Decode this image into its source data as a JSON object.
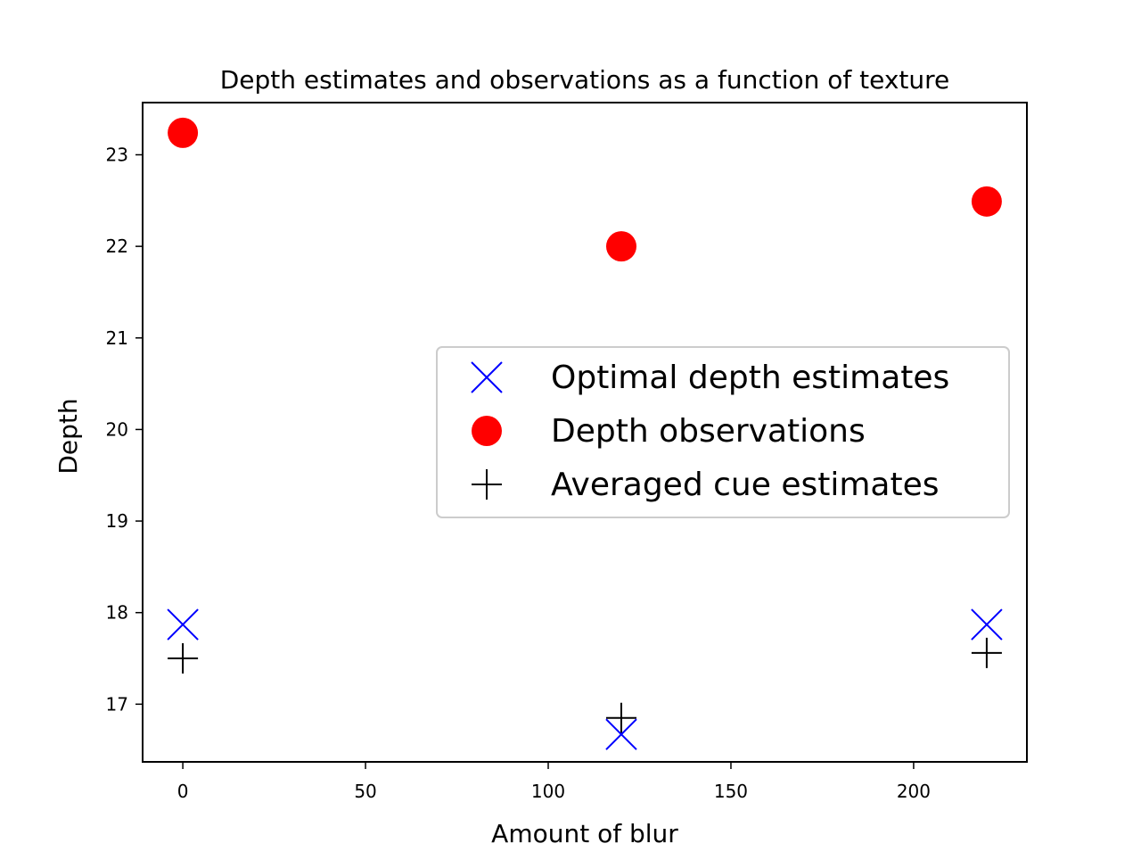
{
  "chart_data": {
    "type": "scatter",
    "title": "Depth estimates and observations as a function of texture",
    "xlabel": "Amount of blur",
    "ylabel": "Depth",
    "xlim": [
      -11,
      231
    ],
    "ylim": [
      16.37,
      23.57
    ],
    "xticks": [
      0,
      50,
      100,
      150,
      200
    ],
    "yticks": [
      17,
      18,
      19,
      20,
      21,
      22,
      23
    ],
    "grid": false,
    "legend_position": "center-right",
    "series": [
      {
        "name": "Optimal depth estimates",
        "marker": "x",
        "color": "#0000ff",
        "x": [
          0,
          120,
          220
        ],
        "y": [
          17.87,
          16.67,
          17.87
        ]
      },
      {
        "name": "Depth observations",
        "marker": "o",
        "color": "#ff0000",
        "x": [
          0,
          120,
          220
        ],
        "y": [
          23.24,
          22.0,
          22.49
        ]
      },
      {
        "name": "Averaged cue estimates",
        "marker": "+",
        "color": "#000000",
        "x": [
          0,
          120,
          220
        ],
        "y": [
          17.5,
          16.85,
          17.56
        ]
      }
    ]
  }
}
